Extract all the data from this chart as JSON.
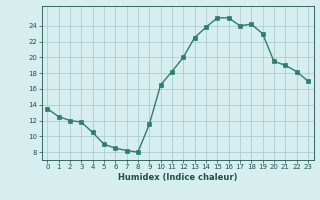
{
  "x": [
    0,
    1,
    2,
    3,
    4,
    5,
    6,
    7,
    8,
    9,
    10,
    11,
    12,
    13,
    14,
    15,
    16,
    17,
    18,
    19,
    20,
    21,
    22,
    23
  ],
  "y": [
    13.5,
    12.5,
    12.0,
    11.8,
    10.5,
    9.0,
    8.5,
    8.2,
    8.0,
    11.5,
    16.5,
    18.2,
    20.0,
    22.5,
    23.8,
    25.0,
    25.0,
    24.0,
    24.2,
    23.0,
    19.5,
    19.0,
    18.2,
    17.0
  ],
  "line_color": "#2e7d6e",
  "marker_color": "#2e7d6e",
  "bg_color": "#d6eeee",
  "grid_color": "#aacece",
  "xlabel": "Humidex (Indice chaleur)",
  "ylabel_ticks": [
    8,
    10,
    12,
    14,
    16,
    18,
    20,
    22,
    24
  ],
  "ylim": [
    7.0,
    26.5
  ],
  "xlim": [
    -0.5,
    23.5
  ],
  "xtick_labels": [
    "0",
    "1",
    "2",
    "3",
    "4",
    "5",
    "6",
    "7",
    "8",
    "9",
    "10",
    "11",
    "12",
    "13",
    "14",
    "15",
    "16",
    "17",
    "18",
    "19",
    "20",
    "21",
    "22",
    "23"
  ],
  "font_color": "#1e5050",
  "tick_fontsize": 5.0,
  "xlabel_fontsize": 6.0
}
